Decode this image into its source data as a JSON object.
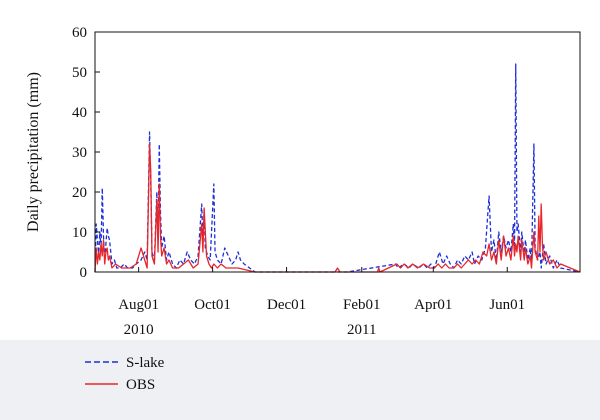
{
  "chart_data": {
    "type": "line",
    "title": "",
    "xlabel": "",
    "ylabel": "Daily precipitation (mm)",
    "ylim": [
      0,
      60
    ],
    "yticks": [
      0,
      10,
      20,
      30,
      40,
      50,
      60
    ],
    "xlim": [
      "2010-06-26",
      "2011-07-31"
    ],
    "xticks": [
      {
        "date": "2010-08-01",
        "label": "Aug01",
        "year": "2010"
      },
      {
        "date": "2010-10-01",
        "label": "Oct01",
        "year": ""
      },
      {
        "date": "2010-12-01",
        "label": "Dec01",
        "year": ""
      },
      {
        "date": "2011-02-01",
        "label": "Feb01",
        "year": "2011"
      },
      {
        "date": "2011-04-01",
        "label": "Apr01",
        "year": ""
      },
      {
        "date": "2011-06-01",
        "label": "Jun01",
        "year": ""
      }
    ],
    "grid": false,
    "legend_position": "bottom-left",
    "series": [
      {
        "name": "S-lake",
        "color": "#1f2fd6",
        "style": "dashed",
        "points": [
          [
            "2010-06-27",
            12
          ],
          [
            "2010-06-28",
            8
          ],
          [
            "2010-06-29",
            4
          ],
          [
            "2010-06-30",
            10
          ],
          [
            "2010-07-01",
            6
          ],
          [
            "2010-07-02",
            21
          ],
          [
            "2010-07-03",
            9
          ],
          [
            "2010-07-04",
            3
          ],
          [
            "2010-07-05",
            7
          ],
          [
            "2010-07-06",
            11
          ],
          [
            "2010-07-07",
            9
          ],
          [
            "2010-07-08",
            8
          ],
          [
            "2010-07-09",
            5
          ],
          [
            "2010-07-10",
            2
          ],
          [
            "2010-07-12",
            3
          ],
          [
            "2010-07-14",
            1
          ],
          [
            "2010-07-17",
            1
          ],
          [
            "2010-07-20",
            2
          ],
          [
            "2010-07-23",
            1
          ],
          [
            "2010-07-27",
            1
          ],
          [
            "2010-07-30",
            2
          ],
          [
            "2010-08-03",
            3
          ],
          [
            "2010-08-06",
            5
          ],
          [
            "2010-08-08",
            3
          ],
          [
            "2010-08-10",
            35
          ],
          [
            "2010-08-11",
            22
          ],
          [
            "2010-08-12",
            5
          ],
          [
            "2010-08-14",
            3
          ],
          [
            "2010-08-16",
            20
          ],
          [
            "2010-08-17",
            8
          ],
          [
            "2010-08-18",
            32
          ],
          [
            "2010-08-19",
            15
          ],
          [
            "2010-08-20",
            6
          ],
          [
            "2010-08-22",
            9
          ],
          [
            "2010-08-24",
            3
          ],
          [
            "2010-08-26",
            5
          ],
          [
            "2010-08-29",
            2
          ],
          [
            "2010-09-01",
            1
          ],
          [
            "2010-09-04",
            3
          ],
          [
            "2010-09-07",
            2
          ],
          [
            "2010-09-10",
            5
          ],
          [
            "2010-09-13",
            3
          ],
          [
            "2010-09-16",
            2
          ],
          [
            "2010-09-19",
            4
          ],
          [
            "2010-09-22",
            17
          ],
          [
            "2010-09-23",
            8
          ],
          [
            "2010-09-24",
            15
          ],
          [
            "2010-09-25",
            6
          ],
          [
            "2010-09-27",
            4
          ],
          [
            "2010-09-29",
            3
          ],
          [
            "2010-10-02",
            22
          ],
          [
            "2010-10-03",
            5
          ],
          [
            "2010-10-05",
            3
          ],
          [
            "2010-10-08",
            2
          ],
          [
            "2010-10-11",
            6
          ],
          [
            "2010-10-14",
            4
          ],
          [
            "2010-10-17",
            2
          ],
          [
            "2010-10-20",
            3
          ],
          [
            "2010-10-22",
            5
          ],
          [
            "2010-10-24",
            3
          ],
          [
            "2010-10-27",
            2
          ],
          [
            "2010-11-05",
            0
          ],
          [
            "2010-12-10",
            0
          ],
          [
            "2011-01-20",
            0
          ],
          [
            "2011-03-01",
            2
          ],
          [
            "2011-03-03",
            1
          ],
          [
            "2011-03-08",
            2
          ],
          [
            "2011-03-12",
            1
          ],
          [
            "2011-03-15",
            2
          ],
          [
            "2011-03-20",
            1
          ],
          [
            "2011-03-24",
            2
          ],
          [
            "2011-03-27",
            1
          ],
          [
            "2011-03-30",
            2
          ],
          [
            "2011-04-02",
            1
          ],
          [
            "2011-04-06",
            5
          ],
          [
            "2011-04-09",
            2
          ],
          [
            "2011-04-12",
            4
          ],
          [
            "2011-04-15",
            2
          ],
          [
            "2011-04-18",
            1
          ],
          [
            "2011-04-21",
            3
          ],
          [
            "2011-04-24",
            2
          ],
          [
            "2011-04-27",
            4
          ],
          [
            "2011-04-30",
            3
          ],
          [
            "2011-05-03",
            5
          ],
          [
            "2011-05-05",
            2
          ],
          [
            "2011-05-08",
            4
          ],
          [
            "2011-05-11",
            3
          ],
          [
            "2011-05-14",
            6
          ],
          [
            "2011-05-17",
            19
          ],
          [
            "2011-05-19",
            5
          ],
          [
            "2011-05-21",
            8
          ],
          [
            "2011-05-23",
            3
          ],
          [
            "2011-05-25",
            10
          ],
          [
            "2011-05-27",
            5
          ],
          [
            "2011-05-29",
            9
          ],
          [
            "2011-05-31",
            6
          ],
          [
            "2011-06-02",
            8
          ],
          [
            "2011-06-04",
            5
          ],
          [
            "2011-06-06",
            12
          ],
          [
            "2011-06-07",
            6
          ],
          [
            "2011-06-08",
            52
          ],
          [
            "2011-06-09",
            10
          ],
          [
            "2011-06-10",
            12
          ],
          [
            "2011-06-12",
            5
          ],
          [
            "2011-06-13",
            10
          ],
          [
            "2011-06-15",
            4
          ],
          [
            "2011-06-16",
            8
          ],
          [
            "2011-06-18",
            3
          ],
          [
            "2011-06-20",
            6
          ],
          [
            "2011-06-21",
            2
          ],
          [
            "2011-06-23",
            32
          ],
          [
            "2011-06-24",
            6
          ],
          [
            "2011-06-26",
            3
          ],
          [
            "2011-06-28",
            5
          ],
          [
            "2011-06-29",
            1
          ],
          [
            "2011-07-01",
            7
          ],
          [
            "2011-07-03",
            2
          ],
          [
            "2011-07-06",
            4
          ],
          [
            "2011-07-09",
            1
          ],
          [
            "2011-07-12",
            3
          ],
          [
            "2011-07-15",
            1
          ]
        ]
      },
      {
        "name": "OBS",
        "color": "#e8262a",
        "style": "solid",
        "points": [
          [
            "2010-06-27",
            6
          ],
          [
            "2010-06-28",
            2
          ],
          [
            "2010-06-29",
            5
          ],
          [
            "2010-06-30",
            3
          ],
          [
            "2010-07-01",
            7
          ],
          [
            "2010-07-02",
            4
          ],
          [
            "2010-07-03",
            8
          ],
          [
            "2010-07-04",
            2
          ],
          [
            "2010-07-05",
            5
          ],
          [
            "2010-07-06",
            6
          ],
          [
            "2010-07-07",
            3
          ],
          [
            "2010-07-08",
            4
          ],
          [
            "2010-07-10",
            1
          ],
          [
            "2010-07-13",
            2
          ],
          [
            "2010-07-18",
            1
          ],
          [
            "2010-07-25",
            1
          ],
          [
            "2010-07-30",
            2
          ],
          [
            "2010-08-03",
            6
          ],
          [
            "2010-08-06",
            3
          ],
          [
            "2010-08-08",
            1
          ],
          [
            "2010-08-10",
            32
          ],
          [
            "2010-08-11",
            25
          ],
          [
            "2010-08-12",
            4
          ],
          [
            "2010-08-14",
            2
          ],
          [
            "2010-08-16",
            18
          ],
          [
            "2010-08-17",
            5
          ],
          [
            "2010-08-18",
            22
          ],
          [
            "2010-08-19",
            9
          ],
          [
            "2010-08-20",
            4
          ],
          [
            "2010-08-22",
            6
          ],
          [
            "2010-08-24",
            2
          ],
          [
            "2010-08-26",
            3
          ],
          [
            "2010-08-29",
            1
          ],
          [
            "2010-09-03",
            1
          ],
          [
            "2010-09-07",
            2
          ],
          [
            "2010-09-11",
            3
          ],
          [
            "2010-09-15",
            1
          ],
          [
            "2010-09-19",
            2
          ],
          [
            "2010-09-22",
            12
          ],
          [
            "2010-09-23",
            5
          ],
          [
            "2010-09-24",
            16
          ],
          [
            "2010-09-25",
            10
          ],
          [
            "2010-09-26",
            4
          ],
          [
            "2010-09-28",
            2
          ],
          [
            "2010-09-30",
            1
          ],
          [
            "2010-10-02",
            2
          ],
          [
            "2010-10-05",
            1
          ],
          [
            "2010-10-08",
            2
          ],
          [
            "2010-10-12",
            1
          ],
          [
            "2010-10-16",
            1
          ],
          [
            "2010-10-22",
            1
          ],
          [
            "2010-11-05",
            0
          ],
          [
            "2010-12-10",
            0
          ],
          [
            "2011-01-10",
            0
          ],
          [
            "2011-01-12",
            1
          ],
          [
            "2011-01-14",
            0
          ],
          [
            "2011-02-14",
            0
          ],
          [
            "2011-02-15",
            1
          ],
          [
            "2011-02-16",
            0
          ],
          [
            "2011-03-02",
            2
          ],
          [
            "2011-03-05",
            1
          ],
          [
            "2011-03-08",
            2
          ],
          [
            "2011-03-11",
            1
          ],
          [
            "2011-03-15",
            2
          ],
          [
            "2011-03-19",
            1
          ],
          [
            "2011-03-24",
            2
          ],
          [
            "2011-03-29",
            1
          ],
          [
            "2011-04-02",
            1
          ],
          [
            "2011-04-05",
            2
          ],
          [
            "2011-04-08",
            1
          ],
          [
            "2011-04-11",
            2
          ],
          [
            "2011-04-14",
            1
          ],
          [
            "2011-04-18",
            1
          ],
          [
            "2011-04-21",
            2
          ],
          [
            "2011-04-24",
            1
          ],
          [
            "2011-04-27",
            2
          ],
          [
            "2011-04-30",
            3
          ],
          [
            "2011-05-03",
            2
          ],
          [
            "2011-05-06",
            3
          ],
          [
            "2011-05-09",
            2
          ],
          [
            "2011-05-12",
            5
          ],
          [
            "2011-05-15",
            4
          ],
          [
            "2011-05-17",
            7
          ],
          [
            "2011-05-19",
            3
          ],
          [
            "2011-05-21",
            5
          ],
          [
            "2011-05-23",
            2
          ],
          [
            "2011-05-25",
            8
          ],
          [
            "2011-05-27",
            3
          ],
          [
            "2011-05-29",
            9
          ],
          [
            "2011-05-31",
            4
          ],
          [
            "2011-06-02",
            6
          ],
          [
            "2011-06-04",
            3
          ],
          [
            "2011-06-06",
            9
          ],
          [
            "2011-06-07",
            4
          ],
          [
            "2011-06-08",
            7
          ],
          [
            "2011-06-09",
            5
          ],
          [
            "2011-06-10",
            9
          ],
          [
            "2011-06-12",
            3
          ],
          [
            "2011-06-13",
            8
          ],
          [
            "2011-06-15",
            3
          ],
          [
            "2011-06-16",
            6
          ],
          [
            "2011-06-18",
            2
          ],
          [
            "2011-06-20",
            4
          ],
          [
            "2011-06-21",
            1
          ],
          [
            "2011-06-23",
            10
          ],
          [
            "2011-06-24",
            5
          ],
          [
            "2011-06-26",
            3
          ],
          [
            "2011-06-27",
            14
          ],
          [
            "2011-06-28",
            5
          ],
          [
            "2011-06-29",
            17
          ],
          [
            "2011-06-30",
            7
          ],
          [
            "2011-07-01",
            3
          ],
          [
            "2011-07-03",
            5
          ],
          [
            "2011-07-06",
            2
          ],
          [
            "2011-07-09",
            3
          ],
          [
            "2011-07-12",
            1
          ],
          [
            "2011-07-15",
            2
          ]
        ]
      }
    ]
  }
}
